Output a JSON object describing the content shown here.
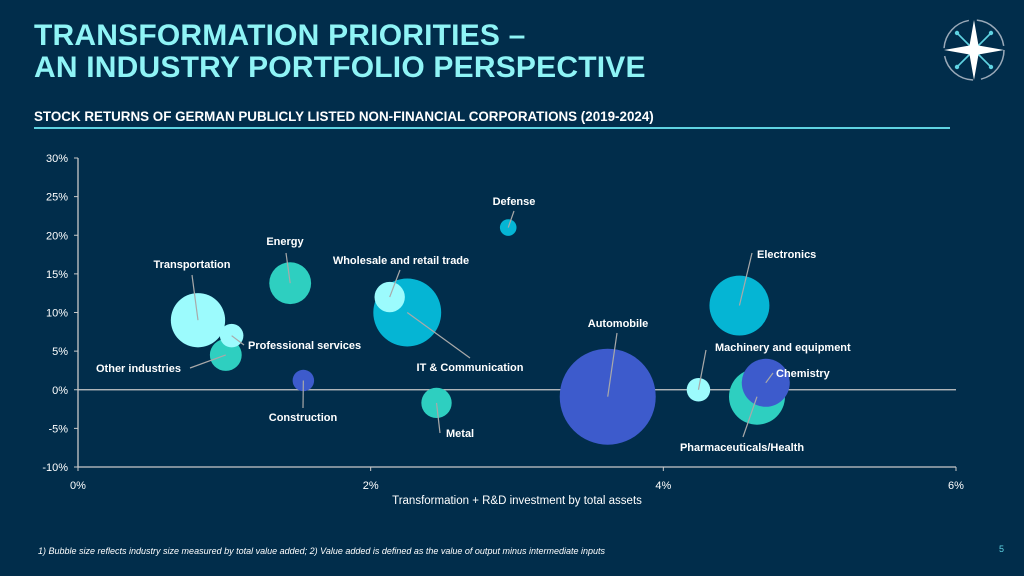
{
  "header": {
    "title_line1": "TRANSFORMATION PRIORITIES –",
    "title_line2": "AN INDUSTRY PORTFOLIO PERSPECTIVE",
    "subtitle": "STOCK RETURNS OF GERMAN PUBLICLY LISTED NON-FINANCIAL CORPORATIONS (2019-2024)",
    "logo_icon": "compass-star-icon"
  },
  "colors": {
    "background": "#012d4b",
    "title": "#8ff4f6",
    "rule": "#5fd3e2",
    "light_cyan": "#9cfbfd",
    "cyan": "#05b5d4",
    "teal": "#2ecfc0",
    "blue": "#3d5bcc",
    "axis": "#c9c9c9"
  },
  "chart_data": {
    "type": "scatter",
    "subtype": "bubble",
    "title": "STOCK RETURNS OF GERMAN PUBLICLY LISTED NON-FINANCIAL CORPORATIONS (2019-2024)",
    "xlabel": "Transformation + R&D investment by total assets",
    "ylabel": "",
    "xlim": [
      0,
      6
    ],
    "ylim": [
      -10,
      30
    ],
    "x_ticks": [
      "0%",
      "2%",
      "4%",
      "6%"
    ],
    "x_tick_values": [
      0,
      2,
      4,
      6
    ],
    "y_ticks": [
      "30%",
      "25%",
      "20%",
      "15%",
      "10%",
      "5%",
      "0%",
      "-5%",
      "-10%"
    ],
    "y_tick_values": [
      30,
      25,
      20,
      15,
      10,
      5,
      0,
      -5,
      -10
    ],
    "grid": false,
    "legend": "none",
    "size_note": "relative bubble size (industry total value added)",
    "points": [
      {
        "label": "Automobile",
        "x": 3.62,
        "y": -0.9,
        "size": 100,
        "color": "blue",
        "label_dx": 0,
        "label_dy": -1
      },
      {
        "label": "IT & Communication",
        "x": 2.25,
        "y": 10.0,
        "size": 50,
        "color": "cyan"
      },
      {
        "label": "Electronics",
        "x": 4.52,
        "y": 10.9,
        "size": 39,
        "color": "cyan"
      },
      {
        "label": "Transportation",
        "x": 0.82,
        "y": 9.0,
        "size": 32,
        "color": "light_cyan"
      },
      {
        "label": "Chemistry",
        "x": 4.7,
        "y": 0.9,
        "size": 25,
        "color": "blue"
      },
      {
        "label": "Pharmaceuticals/Health",
        "x": 4.64,
        "y": -0.9,
        "size": 34,
        "color": "teal"
      },
      {
        "label": "Energy",
        "x": 1.45,
        "y": 13.8,
        "size": 19,
        "color": "teal"
      },
      {
        "label": "Other industries",
        "x": 1.01,
        "y": 4.5,
        "size": 11,
        "color": "teal"
      },
      {
        "label": "Wholesale and retail trade",
        "x": 2.13,
        "y": 12.0,
        "size": 10,
        "color": "light_cyan"
      },
      {
        "label": "Metal",
        "x": 2.45,
        "y": -1.7,
        "size": 10,
        "color": "teal"
      },
      {
        "label": "Professional services",
        "x": 1.05,
        "y": 7.0,
        "size": 6,
        "color": "light_cyan"
      },
      {
        "label": "Machinery and equipment",
        "x": 4.24,
        "y": 0.0,
        "size": 6,
        "color": "light_cyan"
      },
      {
        "label": "Construction",
        "x": 1.54,
        "y": 1.2,
        "size": 5,
        "color": "blue"
      },
      {
        "label": "Defense",
        "x": 2.94,
        "y": 21.0,
        "size": 3,
        "color": "cyan"
      }
    ]
  },
  "footer": {
    "footnote": "1) Bubble size reflects industry size measured by total value added; 2) Value added is defined as the value of output minus intermediate inputs",
    "page_number": "5"
  }
}
